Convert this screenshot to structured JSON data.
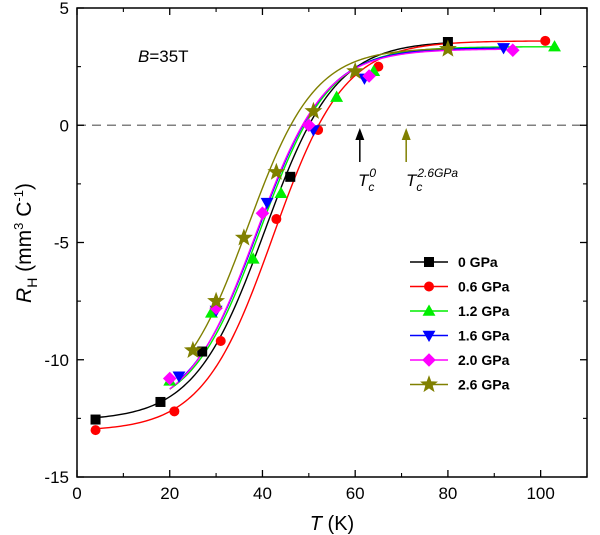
{
  "chart_data": {
    "type": "scatter",
    "xlabel": {
      "italic": "T",
      "rest": " (K)"
    },
    "ylabel": {
      "italic": "R",
      "sub": "H",
      "rest": " (mm",
      "sup": "3",
      "rest2": " C",
      "sup2": "-1",
      "rest3": ")"
    },
    "xlim": [
      0,
      110
    ],
    "ylim": [
      -15,
      5
    ],
    "xticks": [
      0,
      20,
      40,
      60,
      80,
      100
    ],
    "yticks": [
      -15,
      -10,
      -5,
      0,
      5
    ],
    "annotation_field": {
      "italic": "B",
      "rest": "=35T"
    },
    "tc0_label": {
      "base": "T",
      "sub": "c",
      "sup": "0"
    },
    "tc26_label": {
      "base": "T",
      "sub": "c",
      "sup": "2.6GPa"
    },
    "tc0_x": 61,
    "tc26_x": 71,
    "zero_line": 0,
    "legend_position": "right-middle",
    "series": [
      {
        "name": "0 GPa",
        "color": "#000000",
        "marker": "square",
        "points": [
          [
            4,
            -12.55
          ],
          [
            18,
            -11.8
          ],
          [
            27,
            -9.65
          ],
          [
            46,
            -2.2
          ],
          [
            80,
            3.55
          ]
        ],
        "fit": {
          "low": -12.6,
          "high": 3.6,
          "center": 40.5,
          "width": 7.6
        }
      },
      {
        "name": "0.6 GPa",
        "color": "#ff0000",
        "marker": "circle",
        "points": [
          [
            4,
            -13.0
          ],
          [
            21,
            -12.2
          ],
          [
            31,
            -9.2
          ],
          [
            43,
            -4.0
          ],
          [
            52,
            -0.2
          ],
          [
            65,
            2.5
          ],
          [
            101,
            3.6
          ]
        ],
        "fit": {
          "low": -13.05,
          "high": 3.6,
          "center": 42.3,
          "width": 7.6
        }
      },
      {
        "name": "1.2 GPa",
        "color": "#00ee00",
        "marker": "triangle-up",
        "points": [
          [
            20,
            -10.9
          ],
          [
            29,
            -8.0
          ],
          [
            38,
            -5.7
          ],
          [
            44,
            -2.9
          ],
          [
            56,
            1.2
          ],
          [
            64,
            2.3
          ],
          [
            103,
            3.35
          ]
        ],
        "fit": {
          "low": -12.3,
          "high": 3.35,
          "center": 39.5,
          "width": 7.4
        }
      },
      {
        "name": "1.6 GPa",
        "color": "#0000ff",
        "marker": "triangle-down",
        "points": [
          [
            22,
            -10.7
          ],
          [
            30,
            -7.9
          ],
          [
            41,
            -3.3
          ],
          [
            51,
            -0.2
          ],
          [
            62,
            2.0
          ],
          [
            92,
            3.3
          ]
        ],
        "fit": {
          "low": -12.3,
          "high": 3.3,
          "center": 39.0,
          "width": 7.4
        }
      },
      {
        "name": "2.0 GPa",
        "color": "#ff00ff",
        "marker": "diamond",
        "points": [
          [
            20,
            -10.8
          ],
          [
            30,
            -7.8
          ],
          [
            40,
            -3.75
          ],
          [
            50,
            0.0
          ],
          [
            63,
            2.1
          ],
          [
            94,
            3.2
          ]
        ],
        "fit": {
          "low": -12.4,
          "high": 3.25,
          "center": 38.7,
          "width": 7.4
        }
      },
      {
        "name": "2.6 GPa",
        "color": "#808000",
        "marker": "star",
        "points": [
          [
            25,
            -9.6
          ],
          [
            30,
            -7.5
          ],
          [
            36,
            -4.8
          ],
          [
            43,
            -2.0
          ],
          [
            51,
            0.6
          ],
          [
            60,
            2.3
          ],
          [
            80,
            3.25
          ]
        ],
        "fit": {
          "low": -12.0,
          "high": 3.3,
          "center": 36.8,
          "width": 7.2
        }
      }
    ]
  }
}
